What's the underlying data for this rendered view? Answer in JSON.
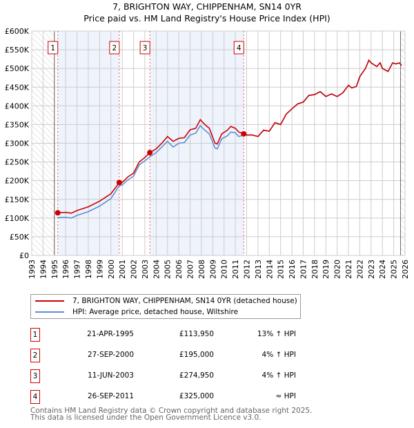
{
  "chart_data": {
    "type": "line",
    "title": "7, BRIGHTON WAY, CHIPPENHAM, SN14 0YR",
    "subtitle": "Price paid vs. HM Land Registry's House Price Index (HPI)",
    "xlim": [
      1993,
      2026
    ],
    "ylim": [
      0,
      600000
    ],
    "x_ticks": [
      "1993",
      "1994",
      "1995",
      "1996",
      "1997",
      "1998",
      "1999",
      "2000",
      "2001",
      "2002",
      "2003",
      "2004",
      "2005",
      "2006",
      "2007",
      "2008",
      "2009",
      "2010",
      "2011",
      "2012",
      "2013",
      "2014",
      "2015",
      "2016",
      "2017",
      "2018",
      "2019",
      "2020",
      "2021",
      "2022",
      "2023",
      "2024",
      "2025",
      "2026"
    ],
    "y_ticks": [
      "£0",
      "£50K",
      "£100K",
      "£150K",
      "£200K",
      "£250K",
      "£300K",
      "£350K",
      "£400K",
      "£450K",
      "£500K",
      "£550K",
      "£600K"
    ],
    "grid": true,
    "series": [
      {
        "name": "7, BRIGHTON WAY, CHIPPENHAM, SN14 0YR (detached house)",
        "color": "#cc0000",
        "x": [
          1995.3,
          1996,
          1996.5,
          1997,
          1998,
          1999,
          2000,
          2000.75,
          2001,
          2001.5,
          2002,
          2002.5,
          2003,
          2003.45,
          2004,
          2004.5,
          2005,
          2005.5,
          2006,
          2006.5,
          2007,
          2007.5,
          2007.9,
          2008.3,
          2008.7,
          2009.2,
          2009.4,
          2009.8,
          2010.3,
          2010.6,
          2011,
          2011.3,
          2011.75,
          2012,
          2012.5,
          2013,
          2013.5,
          2014,
          2014.5,
          2015,
          2015.5,
          2016,
          2016.5,
          2017,
          2017.5,
          2018,
          2018.5,
          2019,
          2019.5,
          2020,
          2020.5,
          2021,
          2021.3,
          2021.7,
          2022,
          2022.5,
          2022.8,
          2023,
          2023.5,
          2023.8,
          2024,
          2024.5,
          2024.9,
          2025.2,
          2025.5,
          2025.7
        ],
        "y": [
          113950,
          115000,
          113000,
          120000,
          130000,
          145000,
          165000,
          195000,
          195000,
          210000,
          220000,
          250000,
          262000,
          274950,
          285000,
          300000,
          318000,
          305000,
          313000,
          315000,
          336000,
          340000,
          363000,
          350000,
          340000,
          300000,
          298000,
          325000,
          335000,
          345000,
          340000,
          330000,
          325000,
          322000,
          322000,
          318000,
          335000,
          332000,
          355000,
          350000,
          378000,
          392000,
          405000,
          410000,
          428000,
          430000,
          438000,
          425000,
          432000,
          425000,
          435000,
          455000,
          448000,
          452000,
          478000,
          500000,
          522000,
          515000,
          505000,
          515000,
          500000,
          492000,
          515000,
          512000,
          515000,
          508000
        ]
      },
      {
        "name": "HPI: Average price, detached house, Wiltshire",
        "color": "#5b8fd4",
        "x": [
          1995.3,
          1996,
          1996.5,
          1997,
          1998,
          1999,
          2000,
          2000.75,
          2001,
          2001.5,
          2002,
          2002.5,
          2003,
          2003.45,
          2004,
          2004.5,
          2005,
          2005.5,
          2006,
          2006.5,
          2007,
          2007.5,
          2007.9,
          2008.3,
          2008.7,
          2009.2,
          2009.4,
          2009.8,
          2010.3,
          2010.6,
          2011,
          2011.3,
          2011.75,
          2012,
          2012.5,
          2013,
          2013.5,
          2014,
          2014.5,
          2015,
          2015.5,
          2016,
          2016.5,
          2017,
          2017.5,
          2018,
          2018.5,
          2019,
          2019.5,
          2020,
          2020.5,
          2021,
          2021.3,
          2021.7,
          2022,
          2022.5,
          2022.8,
          2023,
          2023.5,
          2023.8,
          2024,
          2024.5,
          2024.9,
          2025.2,
          2025.5,
          2025.7
        ],
        "y": [
          101000,
          102000,
          100000,
          107000,
          117000,
          132000,
          152000,
          187000,
          188000,
          202000,
          212000,
          242000,
          253000,
          264000,
          275000,
          290000,
          305000,
          290000,
          300000,
          302000,
          322000,
          327000,
          347000,
          335000,
          325000,
          287000,
          285000,
          312000,
          320000,
          330000,
          328000,
          318000,
          322000,
          322000,
          322000,
          318000,
          335000,
          332000,
          355000,
          350000,
          378000,
          392000,
          405000,
          410000,
          428000,
          430000,
          438000,
          425000,
          432000,
          425000,
          435000,
          455000,
          448000,
          452000,
          478000,
          500000,
          522000,
          515000,
          505000,
          515000,
          500000,
          492000,
          515000,
          512000,
          515000,
          508000
        ]
      }
    ],
    "sales": [
      {
        "n": "1",
        "x": 1995.3,
        "y": 113950
      },
      {
        "n": "2",
        "x": 2000.74,
        "y": 195000
      },
      {
        "n": "3",
        "x": 2003.44,
        "y": 274950
      },
      {
        "n": "4",
        "x": 2011.74,
        "y": 325000
      }
    ],
    "shaded_ranges": [
      [
        1995.3,
        2000.74
      ],
      [
        2003.44,
        2011.74
      ]
    ],
    "hatched_ranges": [
      [
        1993,
        1995
      ],
      [
        2025.6,
        2026
      ]
    ],
    "legend": "below"
  },
  "table": [
    {
      "n": "1",
      "date": "21-APR-1995",
      "price": "£113,950",
      "hpi": "13% ↑ HPI"
    },
    {
      "n": "2",
      "date": "27-SEP-2000",
      "price": "£195,000",
      "hpi": "4% ↑ HPI"
    },
    {
      "n": "3",
      "date": "11-JUN-2003",
      "price": "£274,950",
      "hpi": "4% ↑ HPI"
    },
    {
      "n": "4",
      "date": "26-SEP-2011",
      "price": "£325,000",
      "hpi": "≈ HPI"
    }
  ],
  "footer": [
    "Contains HM Land Registry data © Crown copyright and database right 2025.",
    "This data is licensed under the Open Government Licence v3.0."
  ]
}
